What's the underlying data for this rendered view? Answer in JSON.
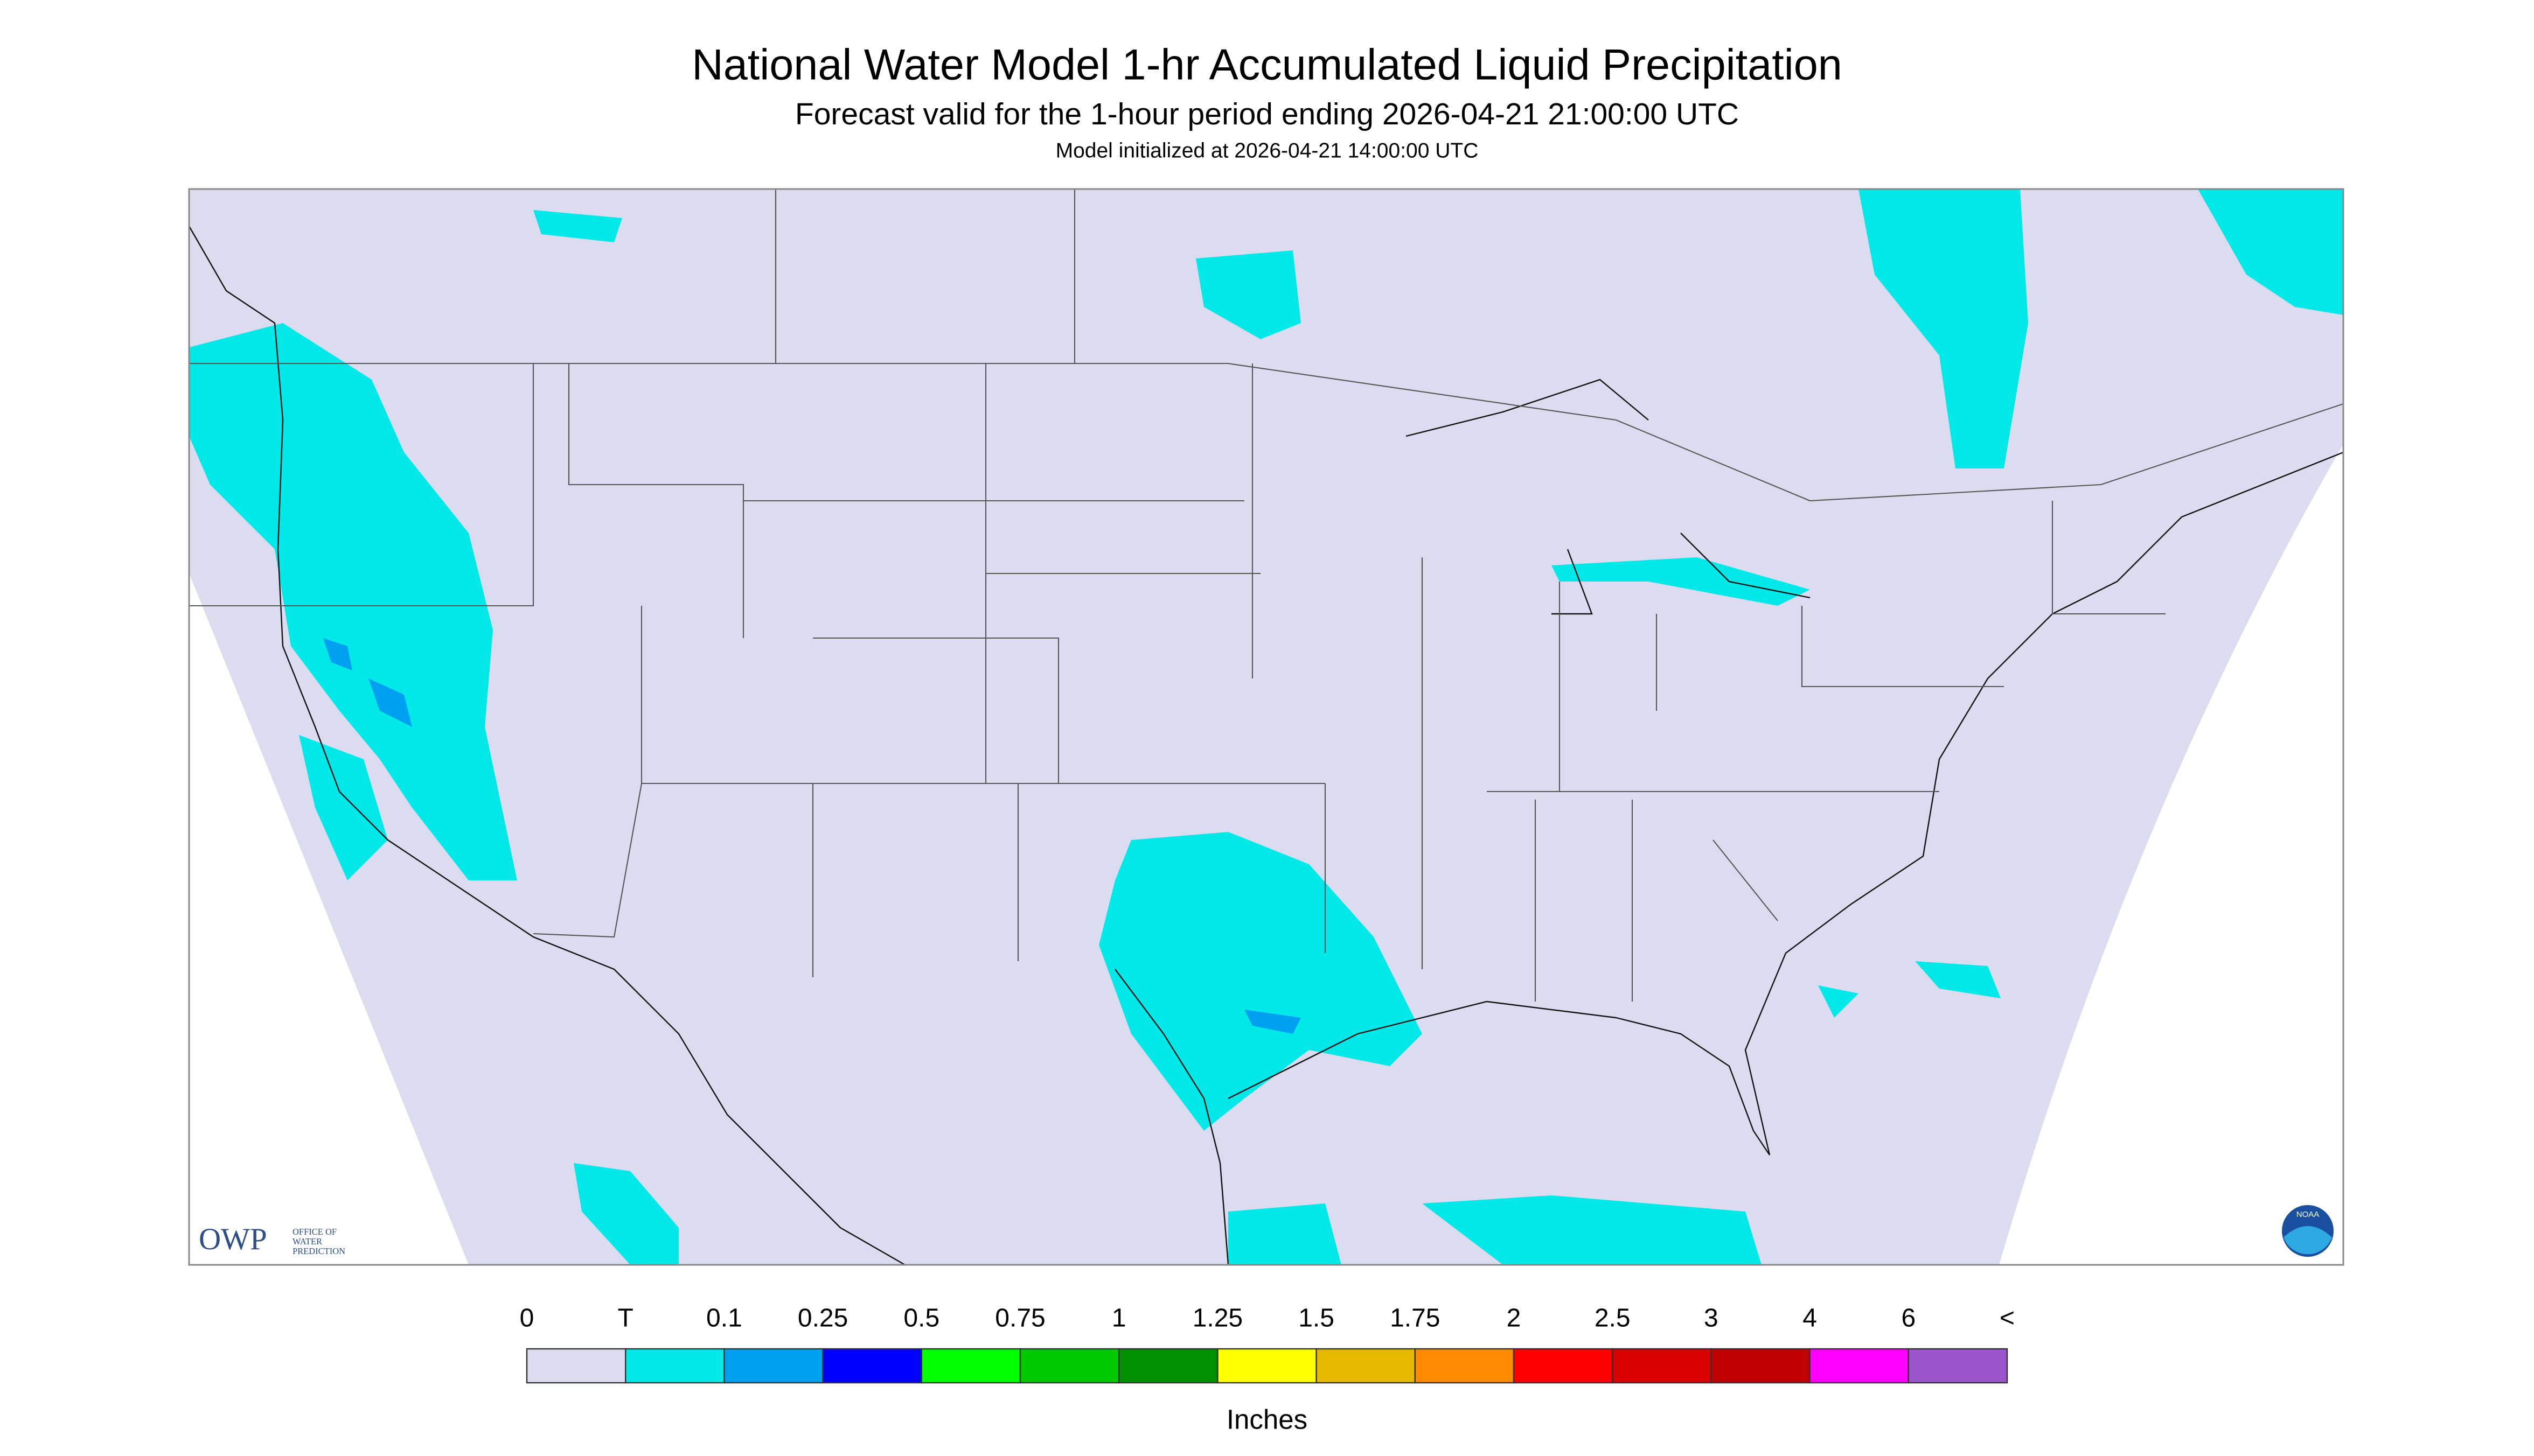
{
  "header": {
    "title": "National Water Model 1-hr Accumulated Liquid Precipitation",
    "subtitle": "Forecast valid for the 1-hour period ending 2026-04-21 21:00:00 UTC",
    "init": "Model initialized at 2026-04-21 14:00:00 UTC"
  },
  "legend": {
    "labels": [
      "0",
      "T",
      "0.1",
      "0.25",
      "0.5",
      "0.75",
      "1",
      "1.25",
      "1.5",
      "1.75",
      "2",
      "2.5",
      "3",
      "4",
      "6",
      "<"
    ],
    "colors": [
      "#dcdcf0",
      "#00e8e8",
      "#00a0f0",
      "#0000ff",
      "#00ff00",
      "#00c800",
      "#009000",
      "#ffff00",
      "#e6b800",
      "#ff8c00",
      "#ff0000",
      "#d80000",
      "#c00000",
      "#ff00ff",
      "#9955c9"
    ],
    "unit": "Inches"
  },
  "logos": {
    "owp": "OWP",
    "owp_text": [
      "OFFICE OF",
      "WATER",
      "PREDICTION"
    ],
    "noaa": "NOAA"
  }
}
